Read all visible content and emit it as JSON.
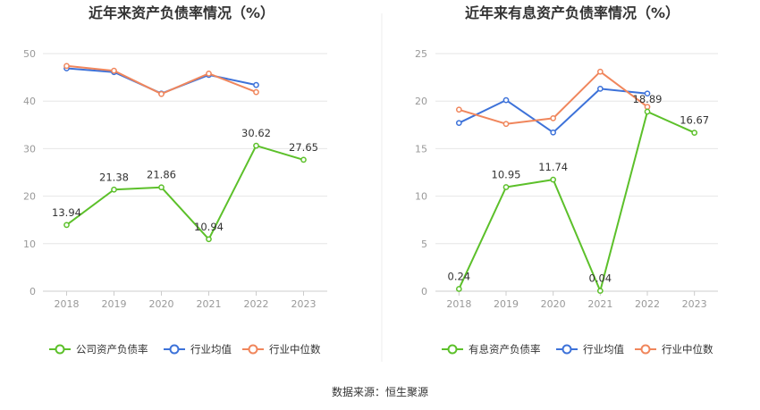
{
  "source_label": "数据来源：恒生聚源",
  "colors": {
    "company": "#5cc02a",
    "industry_avg": "#3d72d9",
    "industry_median": "#f0865c",
    "grid": "#e6e6e6",
    "axis": "#cccccc"
  },
  "chart_data": [
    {
      "type": "line",
      "title": "近年来资产负债率情况（%）",
      "categories": [
        "2018",
        "2019",
        "2020",
        "2021",
        "2022",
        "2023"
      ],
      "ylim": [
        0,
        50
      ],
      "yticks": [
        0,
        10,
        20,
        30,
        40,
        50
      ],
      "grid": true,
      "legend_position": "bottom",
      "series": [
        {
          "name": "公司资产负债率",
          "color": "#5cc02a",
          "values": [
            13.94,
            21.38,
            21.86,
            10.94,
            30.62,
            27.65
          ],
          "labels": [
            "13.94",
            "21.38",
            "21.86",
            "10.94",
            "30.62",
            "27.65"
          ]
        },
        {
          "name": "行业均值",
          "color": "#3d72d9",
          "values": [
            46.9,
            46.1,
            41.6,
            45.5,
            43.4,
            null
          ]
        },
        {
          "name": "行业中位数",
          "color": "#f0865c",
          "values": [
            47.4,
            46.4,
            41.5,
            45.8,
            41.9,
            null
          ]
        }
      ]
    },
    {
      "type": "line",
      "title": "近年来有息资产负债率情况（%）",
      "categories": [
        "2018",
        "2019",
        "2020",
        "2021",
        "2022",
        "2023"
      ],
      "ylim": [
        0,
        25
      ],
      "yticks": [
        0,
        5,
        10,
        15,
        20,
        25
      ],
      "grid": true,
      "legend_position": "bottom",
      "series": [
        {
          "name": "有息资产负债率",
          "color": "#5cc02a",
          "values": [
            0.24,
            10.95,
            11.74,
            0.04,
            18.89,
            16.67
          ],
          "labels": [
            "0.24",
            "10.95",
            "11.74",
            "0.04",
            "18.89",
            "16.67"
          ]
        },
        {
          "name": "行业均值",
          "color": "#3d72d9",
          "values": [
            17.7,
            20.1,
            16.7,
            21.3,
            20.8,
            null
          ]
        },
        {
          "name": "行业中位数",
          "color": "#f0865c",
          "values": [
            19.1,
            17.6,
            18.2,
            23.1,
            19.4,
            null
          ]
        }
      ]
    }
  ]
}
